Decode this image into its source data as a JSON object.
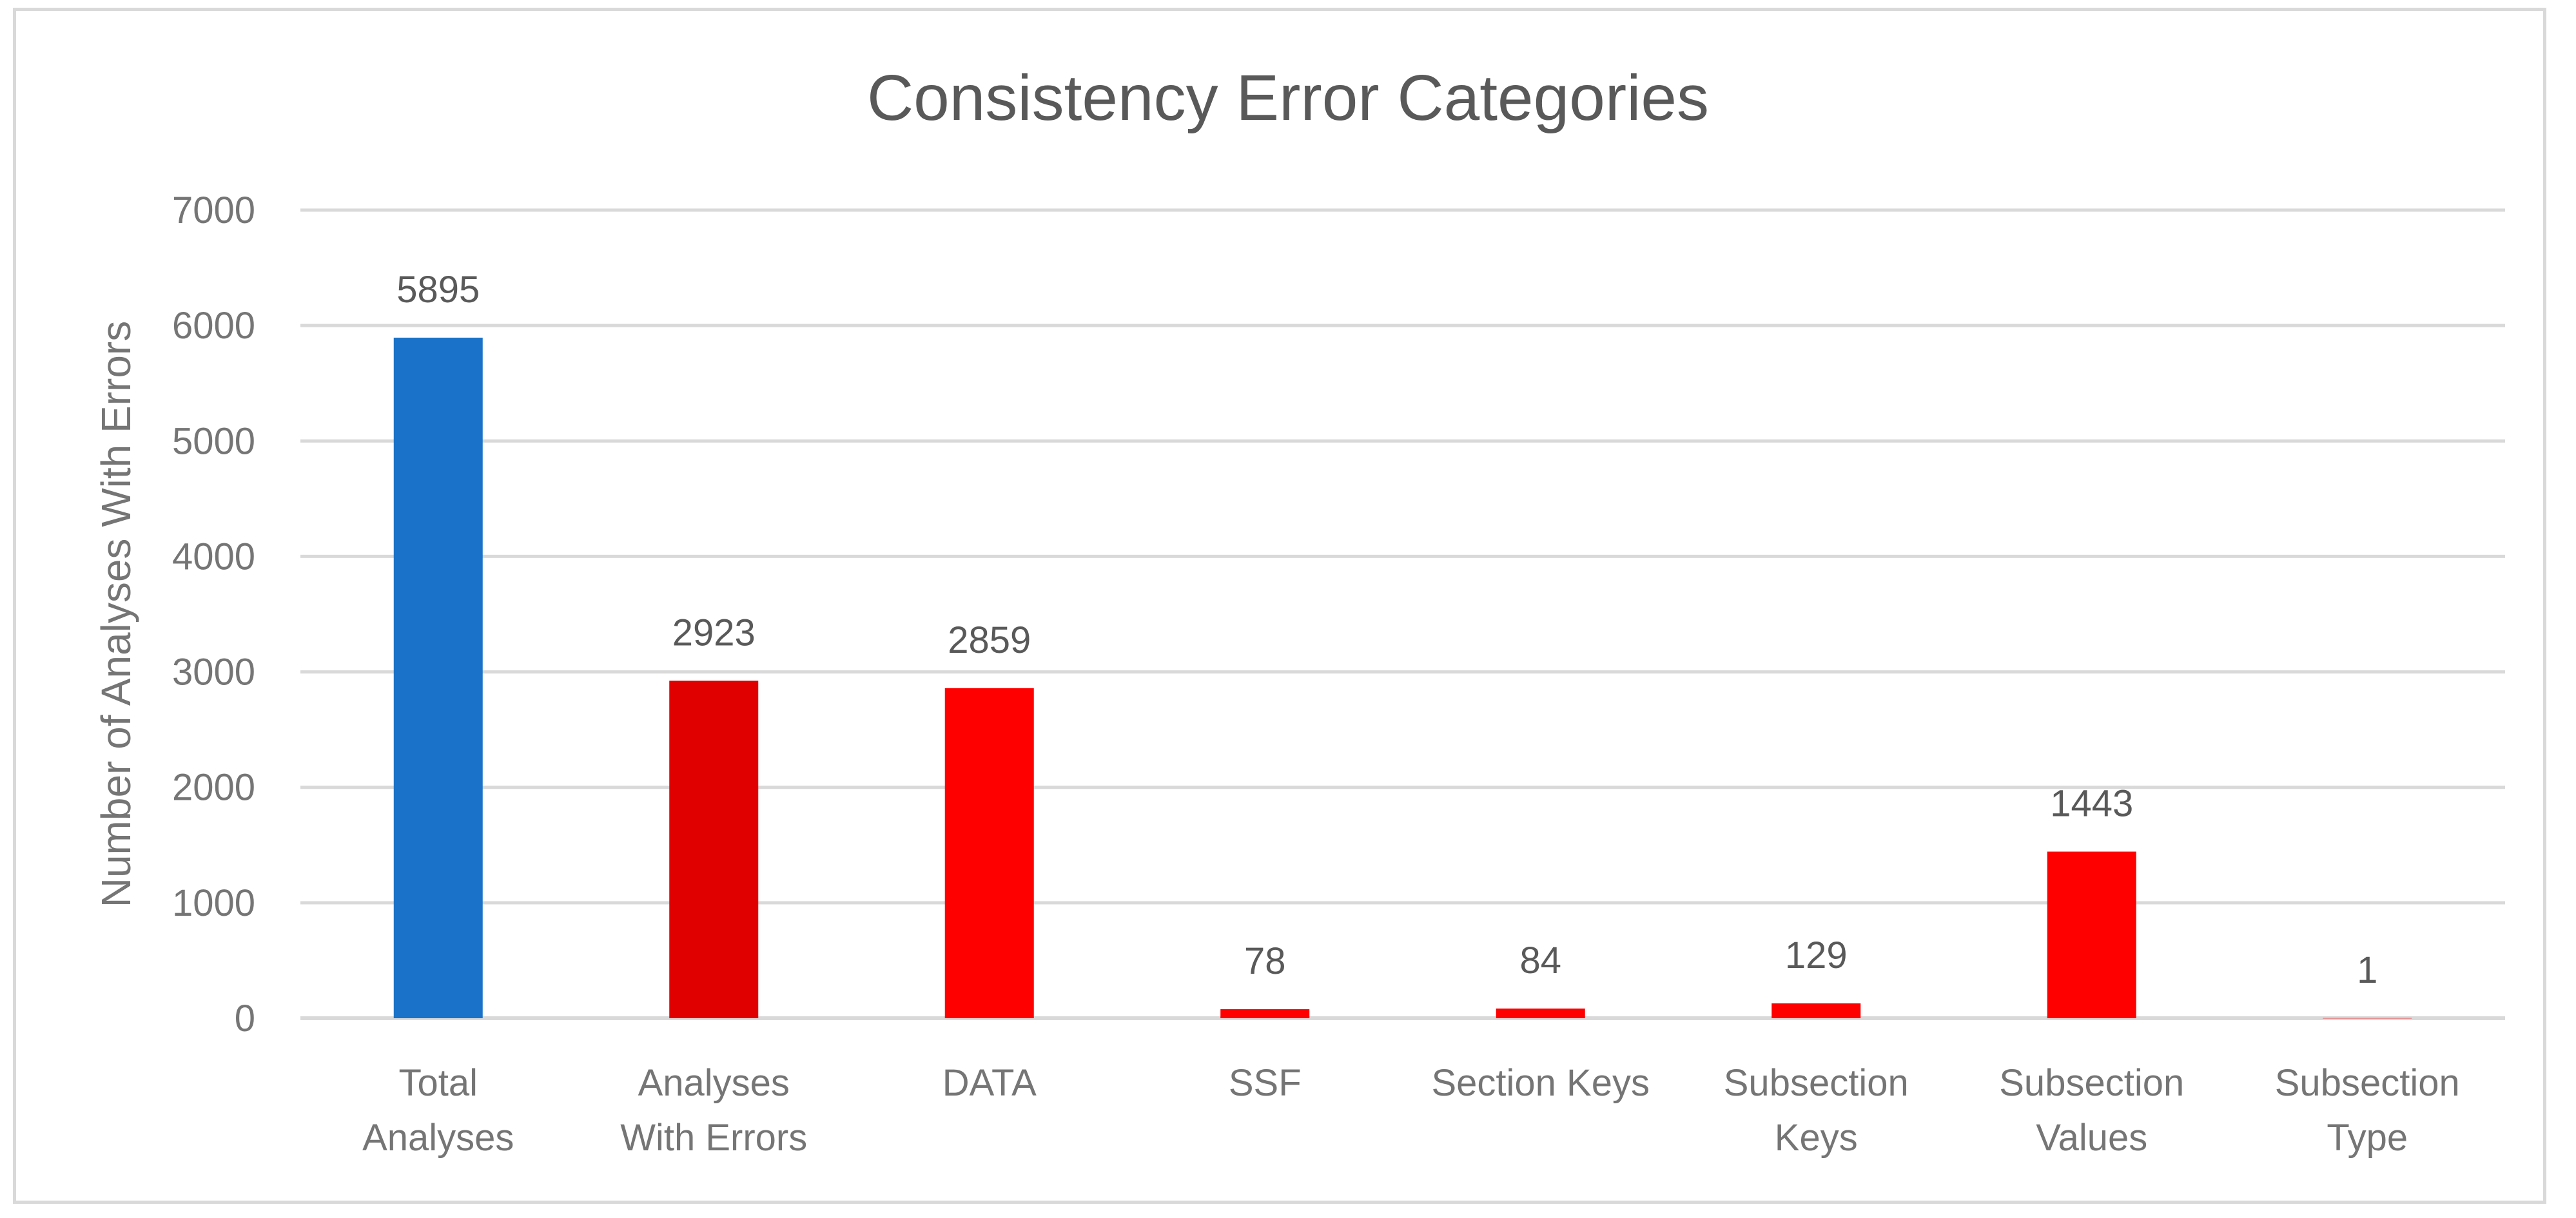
{
  "chart_data": {
    "type": "bar",
    "title": "Consistency Error Categories",
    "xlabel": "",
    "ylabel": "Number of Analyses With Errors",
    "ylim": [
      0,
      7000
    ],
    "yticks": [
      0,
      1000,
      2000,
      3000,
      4000,
      5000,
      6000,
      7000
    ],
    "grid": true,
    "categories": [
      [
        "Total",
        "Analyses"
      ],
      [
        "Analyses",
        "With Errors"
      ],
      [
        "DATA"
      ],
      [
        "SSF"
      ],
      [
        "Section Keys"
      ],
      [
        "Subsection",
        "Keys"
      ],
      [
        "Subsection",
        "Values"
      ],
      [
        "Subsection",
        "Type"
      ]
    ],
    "values": [
      5895,
      2923,
      2859,
      78,
      84,
      129,
      1443,
      1
    ],
    "colors": [
      "#1A73C8",
      "#E00000",
      "#FF0000",
      "#FF0000",
      "#FF0000",
      "#FF0000",
      "#FF0000",
      "#FF0000"
    ],
    "data_labels": true
  }
}
